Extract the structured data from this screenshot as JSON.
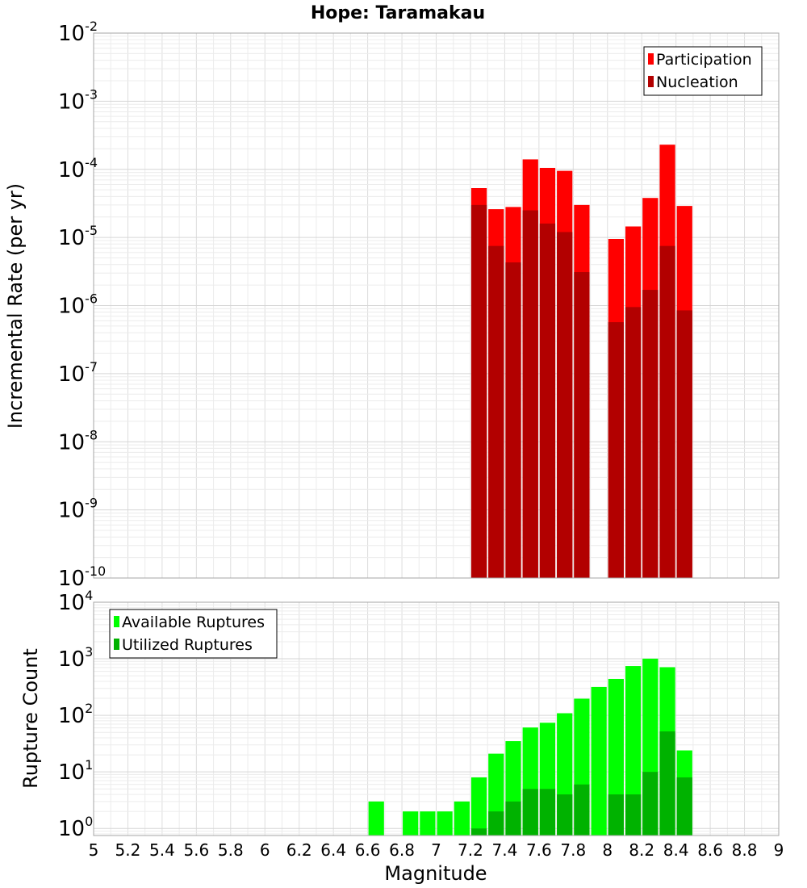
{
  "chart_data": [
    {
      "type": "bar",
      "title": "Hope: Taramakau",
      "ylabel": "Incremental Rate (per yr)",
      "xlabel": "",
      "xlim": [
        5,
        9
      ],
      "ylim": [
        1e-10,
        0.01
      ],
      "yscale": "log",
      "ytick_base": "10",
      "ytick_exponents": [
        "-10",
        "-9",
        "-8",
        "-7",
        "-6",
        "-5",
        "-4",
        "-3",
        "-2"
      ],
      "grid": true,
      "legend_position": "top-right",
      "bin_width": 0.1,
      "x": [
        7.25,
        7.35,
        7.45,
        7.55,
        7.65,
        7.75,
        7.85,
        8.05,
        8.15,
        8.25,
        8.35,
        8.45
      ],
      "series": [
        {
          "name": "Participation",
          "color": "#ff0000",
          "values": [
            5.3e-05,
            2.6e-05,
            2.8e-05,
            0.00014,
            0.000105,
            9.5e-05,
            3e-05,
            9.5e-06,
            1.45e-05,
            3.8e-05,
            0.00023,
            2.9e-05
          ]
        },
        {
          "name": "Nucleation",
          "color": "#b20000",
          "values": [
            3e-05,
            7.5e-06,
            4.3e-06,
            2.5e-05,
            1.6e-05,
            1.2e-05,
            3.1e-06,
            5.7e-07,
            9.5e-07,
            1.7e-06,
            7.5e-06,
            8.5e-07
          ]
        }
      ]
    },
    {
      "type": "bar",
      "title": "",
      "ylabel": "Rupture Count",
      "xlabel": "Magnitude",
      "xlim": [
        5,
        9
      ],
      "ylim": [
        0.75,
        10000
      ],
      "yscale": "log",
      "ytick_base": "10",
      "ytick_exponents": [
        "0",
        "1",
        "2",
        "3",
        "4"
      ],
      "xticks": [
        "5",
        "5.2",
        "5.4",
        "5.6",
        "5.8",
        "6",
        "6.2",
        "6.4",
        "6.6",
        "6.8",
        "7",
        "7.2",
        "7.4",
        "7.6",
        "7.8",
        "8",
        "8.2",
        "8.4",
        "8.6",
        "8.8",
        "9"
      ],
      "grid": true,
      "legend_position": "top-left",
      "bin_width": 0.1,
      "x": [
        6.65,
        6.85,
        6.95,
        7.05,
        7.15,
        7.25,
        7.35,
        7.45,
        7.55,
        7.65,
        7.75,
        7.85,
        7.95,
        8.05,
        8.15,
        8.25,
        8.35,
        8.45
      ],
      "series": [
        {
          "name": "Available Ruptures",
          "color": "#00ff00",
          "values": [
            3,
            2,
            2,
            2,
            3,
            8,
            21,
            35,
            61,
            74,
            109,
            197,
            318,
            441,
            744,
            1005,
            710,
            24
          ]
        },
        {
          "name": "Utilized Ruptures",
          "color": "#00b200",
          "values": [
            0,
            0,
            0,
            0,
            0,
            1,
            2,
            3,
            5,
            5,
            4,
            6,
            0,
            4,
            4,
            10,
            52,
            8
          ]
        }
      ]
    }
  ]
}
